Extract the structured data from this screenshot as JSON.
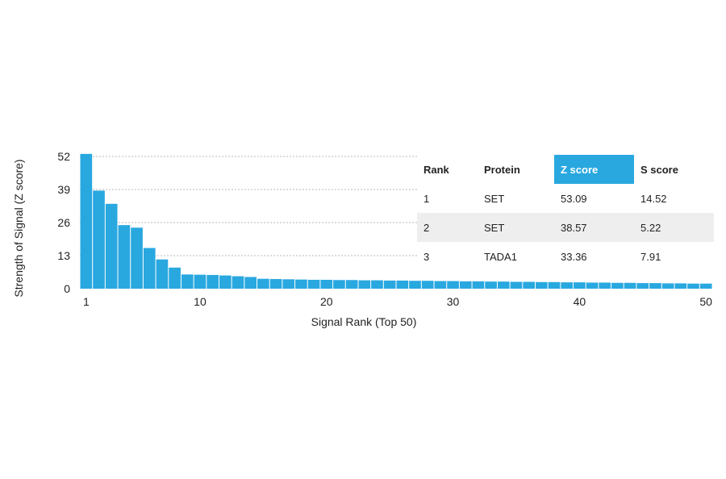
{
  "chart_data": {
    "type": "bar",
    "xlabel": "Signal Rank (Top 50)",
    "ylabel": "Strength of Signal (Z score)",
    "ylim": [
      0,
      52
    ],
    "yticks": [
      "0",
      "13",
      "26",
      "39",
      "52"
    ],
    "xticks": [
      "1",
      "10",
      "20",
      "30",
      "40",
      "50"
    ],
    "grid": "horizontal dotted",
    "bar_color": "#29a8e0",
    "x": [
      1,
      2,
      3,
      4,
      5,
      6,
      7,
      8,
      9,
      10,
      11,
      12,
      13,
      14,
      15,
      16,
      17,
      18,
      19,
      20,
      21,
      22,
      23,
      24,
      25,
      26,
      27,
      28,
      29,
      30,
      31,
      32,
      33,
      34,
      35,
      36,
      37,
      38,
      39,
      40,
      41,
      42,
      43,
      44,
      45,
      46,
      47,
      48,
      49,
      50
    ],
    "values": [
      53.09,
      38.57,
      33.36,
      25.0,
      24.0,
      16.0,
      11.5,
      8.3,
      5.6,
      5.5,
      5.4,
      5.2,
      4.9,
      4.6,
      3.9,
      3.8,
      3.7,
      3.6,
      3.5,
      3.5,
      3.4,
      3.4,
      3.3,
      3.3,
      3.2,
      3.2,
      3.1,
      3.1,
      3.0,
      3.0,
      2.9,
      2.9,
      2.8,
      2.8,
      2.7,
      2.7,
      2.6,
      2.6,
      2.5,
      2.5,
      2.4,
      2.4,
      2.3,
      2.3,
      2.2,
      2.2,
      2.1,
      2.1,
      2.0,
      2.0
    ],
    "table": {
      "columns": [
        "Rank",
        "Protein",
        "Z score",
        "S score"
      ],
      "highlight_column": 2,
      "highlight_color": "#29a8e0",
      "rows": [
        [
          "1",
          "SET",
          "53.09",
          "14.52"
        ],
        [
          "2",
          "SET",
          "38.57",
          "5.22"
        ],
        [
          "3",
          "TADA1",
          "33.36",
          "7.91"
        ]
      ]
    }
  }
}
